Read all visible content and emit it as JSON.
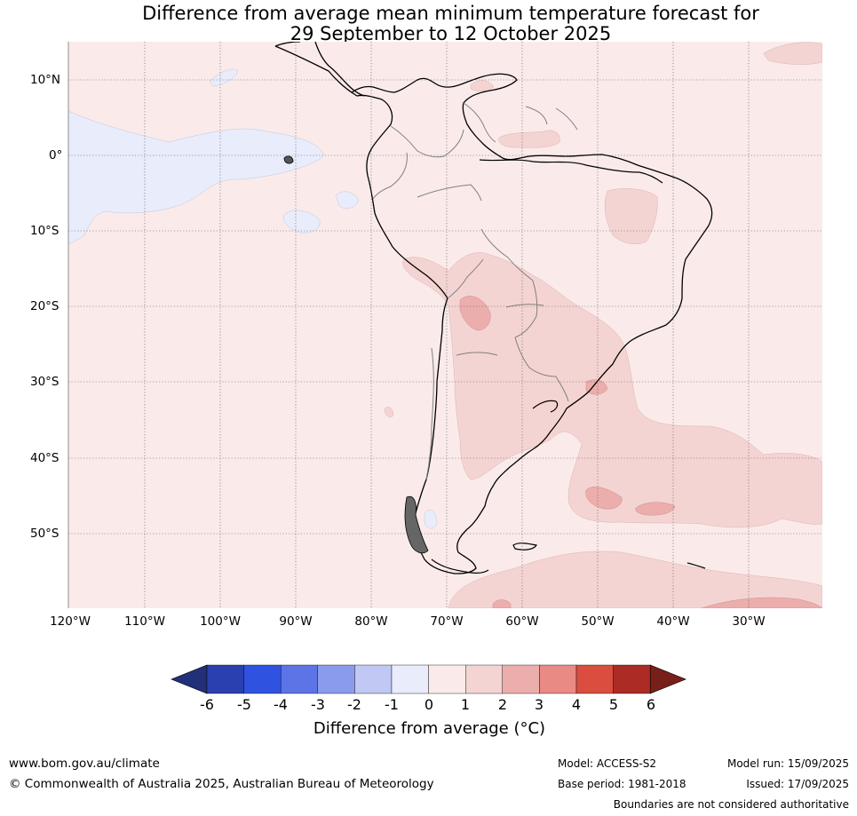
{
  "title": {
    "line1": "Difference from average mean minimum temperature forecast for",
    "line2": "29 September to 12 October 2025"
  },
  "map": {
    "lat_labels": [
      "10°N",
      "0°",
      "10°S",
      "20°S",
      "30°S",
      "40°S",
      "50°S"
    ],
    "lon_labels": [
      "120°W",
      "110°W",
      "100°W",
      "90°W",
      "80°W",
      "70°W",
      "60°W",
      "50°W",
      "40°W",
      "30°W"
    ],
    "colors": {
      "base": "#faebea",
      "anomaly_1_2": "#f4d4d2",
      "anomaly_2_3": "#ecaeac",
      "anomaly_neg_1_0": "#e8ecfb",
      "coast": "#000000",
      "border": "#808080",
      "grid": "#555555"
    }
  },
  "colorbar": {
    "ticks": [
      "-6",
      "-5",
      "-4",
      "-3",
      "-2",
      "-1",
      "0",
      "1",
      "2",
      "3",
      "4",
      "5",
      "6"
    ],
    "colors": [
      "#22307a",
      "#2a3fb0",
      "#2f52e0",
      "#5d74e6",
      "#8a9bee",
      "#c1c8f4",
      "#e8ecfb",
      "#faebea",
      "#f4d4d2",
      "#ecaeac",
      "#e98a84",
      "#da4d3f",
      "#ac2b24",
      "#781f1a"
    ],
    "label": "Difference from average (°C)"
  },
  "footer": {
    "website": "www.bom.gov.au/climate",
    "copyright": "© Commonwealth of Australia 2025, Australian Bureau of Meteorology",
    "model": "Model: ACCESS-S2",
    "base_period": "Base period: 1981-2018",
    "model_run": "Model run: 15/09/2025",
    "issued": "Issued: 17/09/2025",
    "disclaimer": "Boundaries are not considered authoritative"
  }
}
